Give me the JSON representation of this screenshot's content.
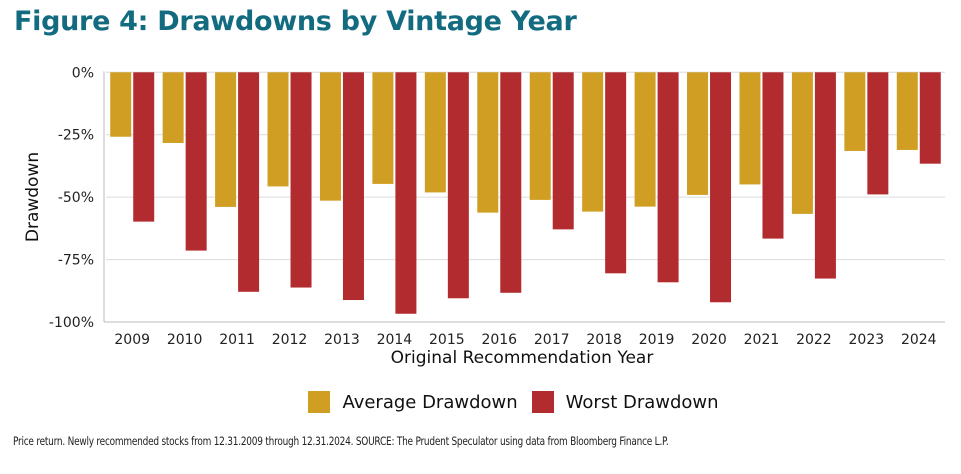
{
  "title": "Figure 4: Drawdowns by Vintage Year",
  "footnote": "Price return. Newly recommended stocks from 12.31.2009 through 12.31.2024. SOURCE: The Prudent Speculator using data from Bloomberg Finance L.P.",
  "chart_data": {
    "type": "bar",
    "title": "Figure 4: Drawdowns by Vintage Year",
    "xlabel": "Original Recommendation Year",
    "ylabel": "Drawdown",
    "ylim": [
      -100,
      0
    ],
    "yticks": [
      0,
      -25,
      -50,
      -75,
      -100
    ],
    "ytick_labels": [
      "0%",
      "-25%",
      "-50%",
      "-75%",
      "-100%"
    ],
    "grid": true,
    "legend_position": "bottom",
    "categories": [
      "2009",
      "2010",
      "2011",
      "2012",
      "2013",
      "2014",
      "2015",
      "2016",
      "2017",
      "2018",
      "2019",
      "2020",
      "2021",
      "2022",
      "2023",
      "2024"
    ],
    "series": [
      {
        "name": "Average Drawdown",
        "color": "#D09E22",
        "values": [
          -25.8,
          -28.3,
          -53.9,
          -45.7,
          -51.4,
          -44.7,
          -48.1,
          -56.2,
          -51.1,
          -55.8,
          -53.8,
          -49.1,
          -44.9,
          -56.7,
          -31.5,
          -31.1
        ]
      },
      {
        "name": "Worst Drawdown",
        "color": "#B22B2E",
        "values": [
          -59.8,
          -71.4,
          -87.9,
          -86.2,
          -91.2,
          -96.7,
          -90.5,
          -88.3,
          -62.9,
          -80.5,
          -84.1,
          -92.1,
          -66.6,
          -82.6,
          -48.9,
          -36.6
        ]
      }
    ]
  }
}
